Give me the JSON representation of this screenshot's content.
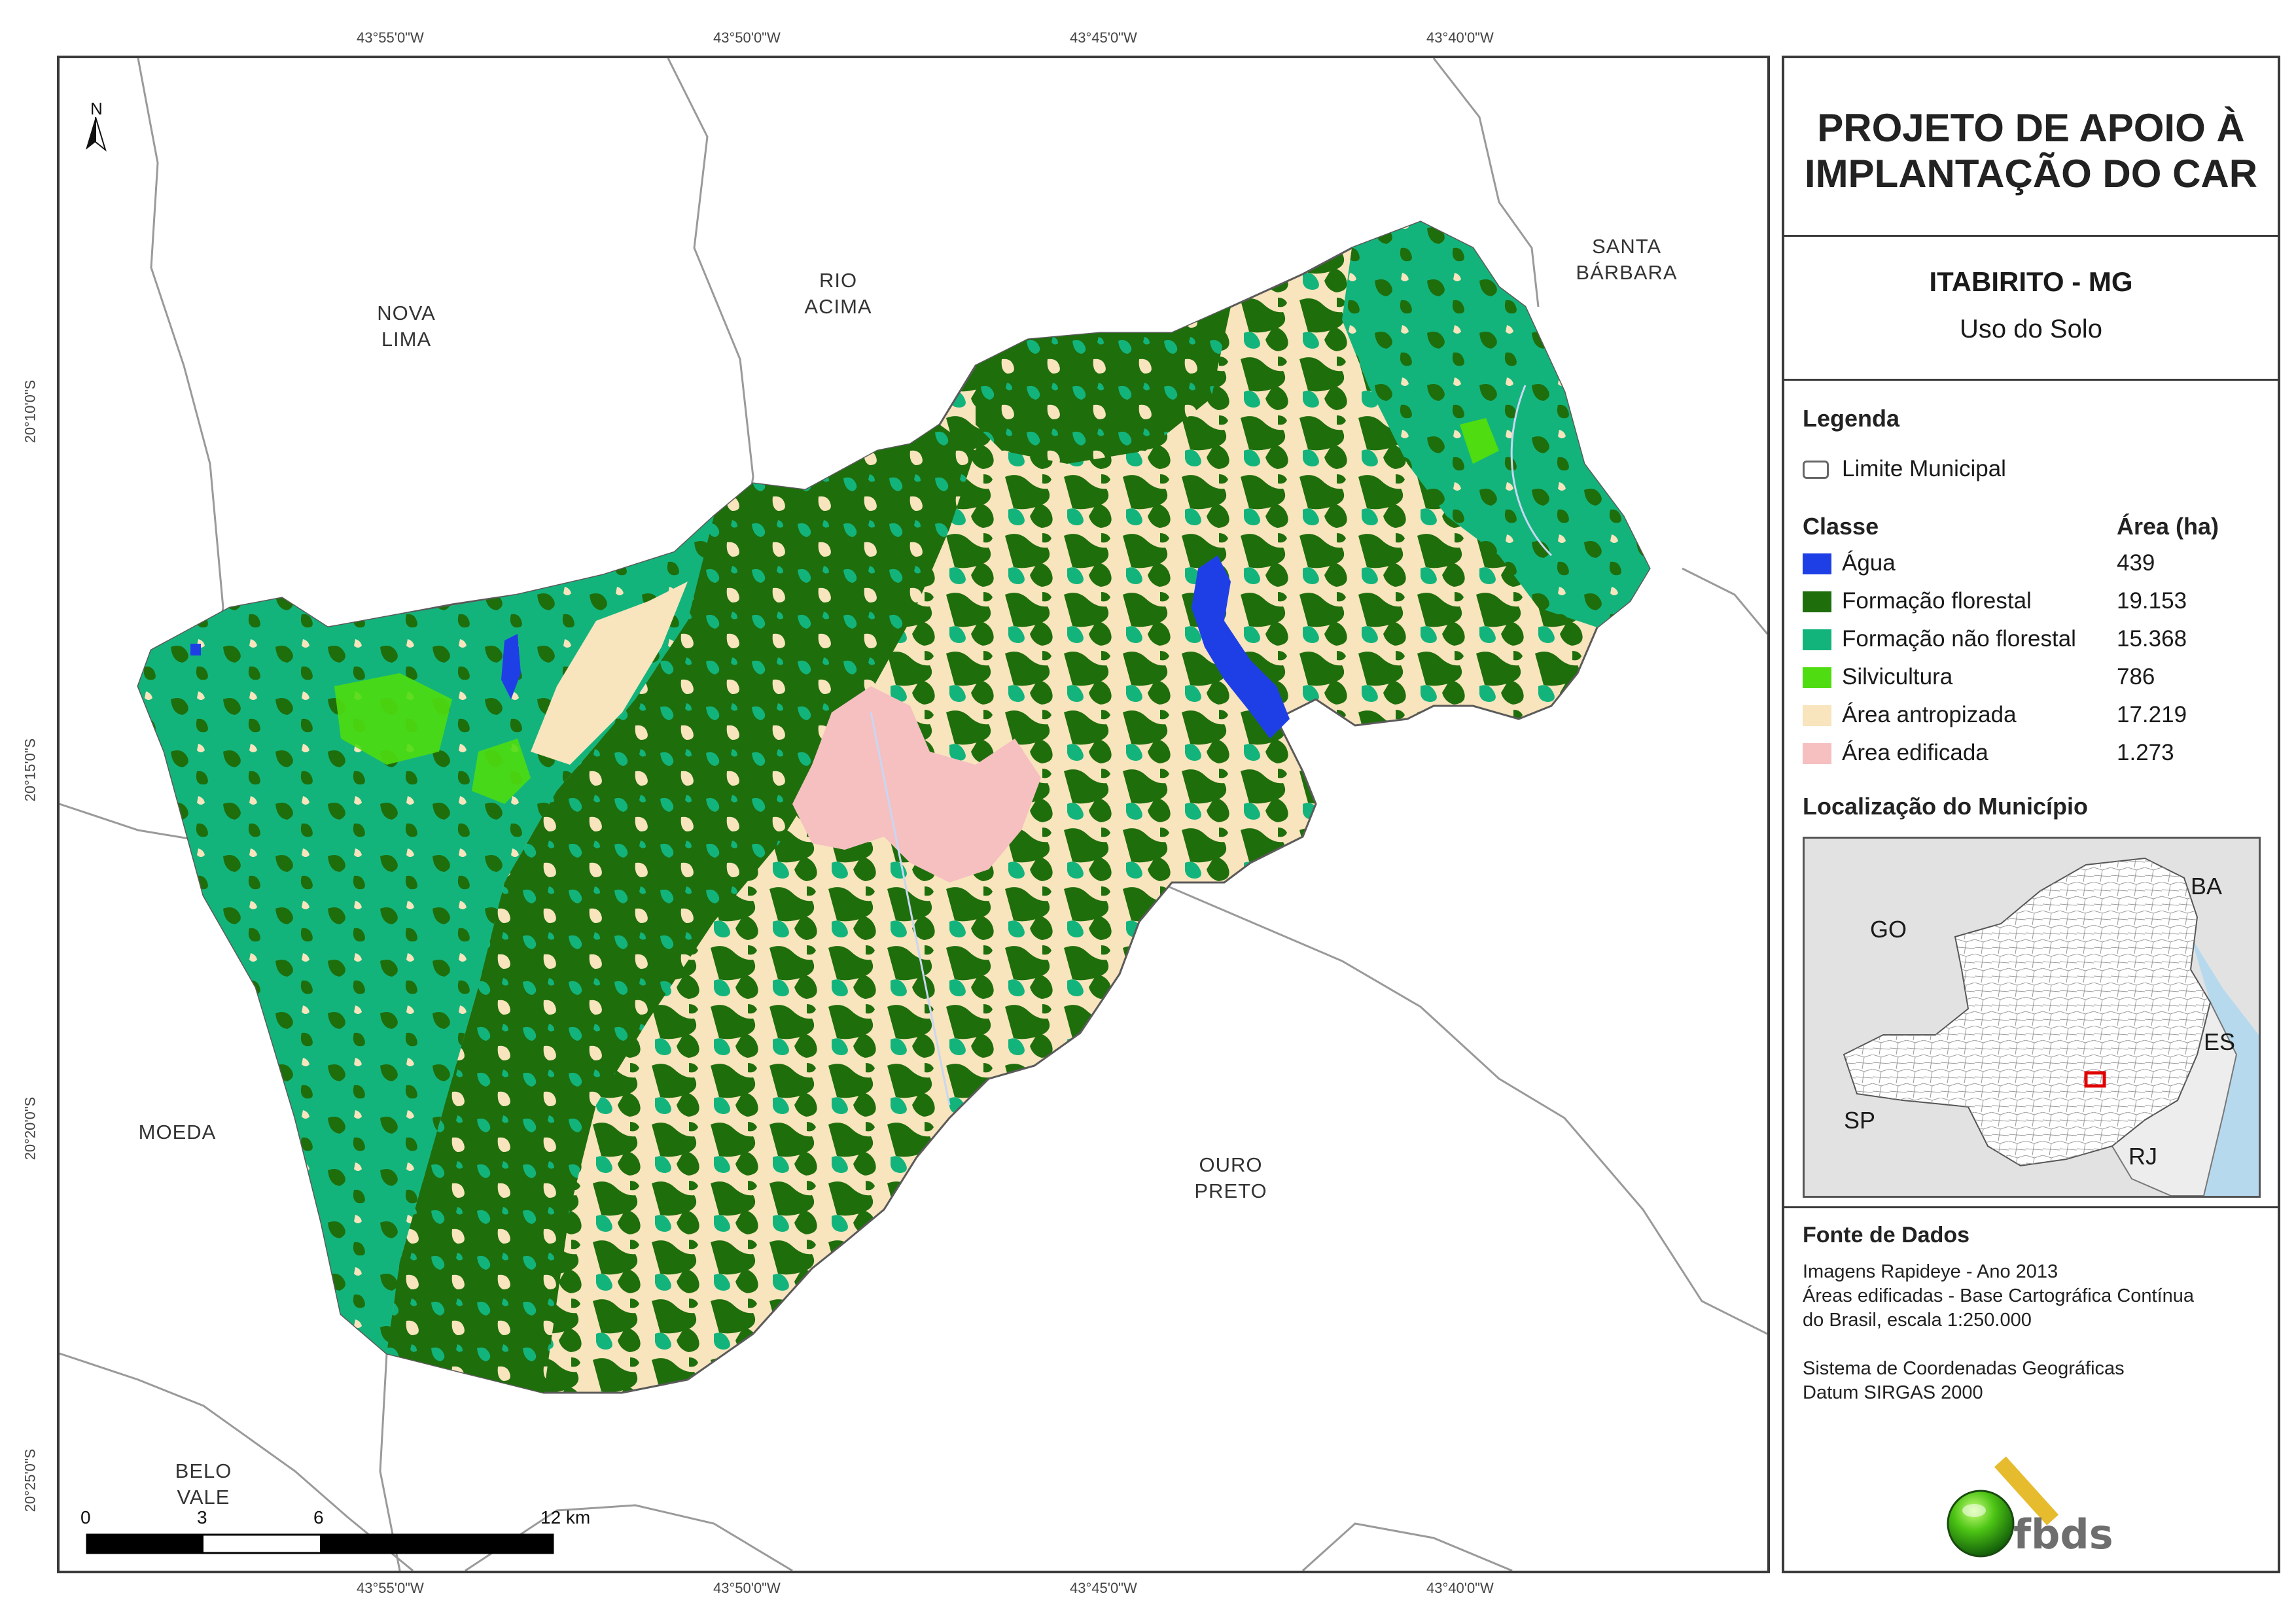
{
  "coordinates": {
    "top": [
      "43°55'0\"W",
      "43°50'0\"W",
      "43°45'0\"W",
      "43°40'0\"W"
    ],
    "bottom": [
      "43°55'0\"W",
      "43°50'0\"W",
      "43°45'0\"W",
      "43°40'0\"W"
    ],
    "left": [
      "20°10'0\"S",
      "20°15'0\"S",
      "20°20'0\"S",
      "20°25'0\"S"
    ]
  },
  "map": {
    "north_arrow": "N",
    "neighbors": [
      {
        "line1": "NOVA",
        "line2": "LIMA"
      },
      {
        "line1": "RIO",
        "line2": "ACIMA"
      },
      {
        "line1": "SANTA",
        "line2": "BÁRBARA"
      },
      {
        "line1": "MOEDA",
        "line2": ""
      },
      {
        "line1": "OURO",
        "line2": "PRETO"
      },
      {
        "line1": "BELO",
        "line2": "VALE"
      }
    ],
    "scale_bar": {
      "labels": [
        "0",
        "3",
        "6",
        "12 km"
      ]
    }
  },
  "panel": {
    "title_line1": "PROJETO DE APOIO À",
    "title_line2": "IMPLANTAÇÃO DO CAR",
    "municipality": "ITABIRITO - MG",
    "theme": "Uso do Solo",
    "legend_heading": "Legenda",
    "boundary_label": "Limite Municipal",
    "class_heading": "Classe",
    "area_heading": "Área (ha)",
    "classes": [
      {
        "name": "Água",
        "area": "439",
        "color": "#1f3fe6"
      },
      {
        "name": "Formação florestal",
        "area": "19.153",
        "color": "#1f6e0c"
      },
      {
        "name": "Formação não florestal",
        "area": "15.368",
        "color": "#13b47c"
      },
      {
        "name": "Silvicultura",
        "area": "786",
        "color": "#4fdc10"
      },
      {
        "name": "Área antropizada",
        "area": "17.219",
        "color": "#f8e4bd"
      },
      {
        "name": "Área edificada",
        "area": "1.273",
        "color": "#f6bfc0"
      }
    ],
    "location_heading": "Localização do Município",
    "inset_states": [
      "GO",
      "BA",
      "ES",
      "SP",
      "RJ"
    ],
    "source_heading": "Fonte de Dados",
    "source_lines": [
      "Imagens Rapideye - Ano 2013",
      "Áreas edificadas - Base Cartográfica Contínua",
      "do Brasil, escala 1:250.000"
    ],
    "crs_lines": [
      "Sistema de Coordenadas Geográficas",
      "Datum SIRGAS 2000"
    ],
    "logo_text": "fbds"
  }
}
